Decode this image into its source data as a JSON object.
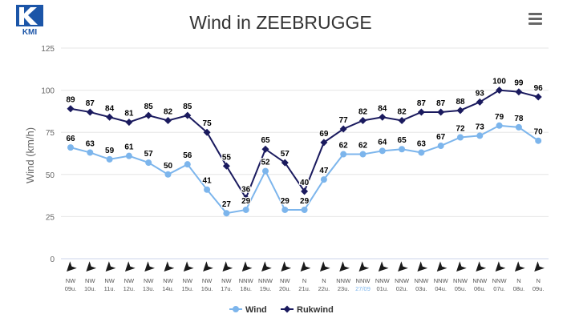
{
  "brand": {
    "logo_text": "KMI"
  },
  "toolbar": {
    "menu_icon": "hamburger-menu-icon"
  },
  "chart_data": {
    "type": "line",
    "title": "Wind in ZEEBRUGGE",
    "ylabel": "Wind (km/h)",
    "xlabel": "",
    "ylim": [
      0,
      125
    ],
    "yticks": [
      0,
      25,
      50,
      75,
      100,
      125
    ],
    "grid": true,
    "legend_position": "bottom-center",
    "categories": [
      {
        "dir": "NW",
        "time": "09u."
      },
      {
        "dir": "NW",
        "time": "10u."
      },
      {
        "dir": "NW",
        "time": "11u."
      },
      {
        "dir": "NW",
        "time": "12u."
      },
      {
        "dir": "NW",
        "time": "13u."
      },
      {
        "dir": "NW",
        "time": "14u."
      },
      {
        "dir": "NW",
        "time": "15u."
      },
      {
        "dir": "NW",
        "time": "16u."
      },
      {
        "dir": "NW",
        "time": "17u."
      },
      {
        "dir": "NNW",
        "time": "18u."
      },
      {
        "dir": "NNW",
        "time": "19u."
      },
      {
        "dir": "NW",
        "time": "20u."
      },
      {
        "dir": "N",
        "time": "21u."
      },
      {
        "dir": "N",
        "time": "22u."
      },
      {
        "dir": "NNW",
        "time": "23u."
      },
      {
        "dir": "NNW",
        "time": "27/09",
        "highlight": true
      },
      {
        "dir": "NNW",
        "time": "01u."
      },
      {
        "dir": "NNW",
        "time": "02u."
      },
      {
        "dir": "NNW",
        "time": "03u."
      },
      {
        "dir": "NNW",
        "time": "04u."
      },
      {
        "dir": "NNW",
        "time": "05u."
      },
      {
        "dir": "NNW",
        "time": "06u."
      },
      {
        "dir": "NNW",
        "time": "07u."
      },
      {
        "dir": "N",
        "time": "08u."
      },
      {
        "dir": "N",
        "time": "09u."
      }
    ],
    "series": [
      {
        "name": "Wind",
        "color": "#7cb5ec",
        "values": [
          66,
          63,
          59,
          61,
          57,
          50,
          56,
          41,
          27,
          29,
          52,
          29,
          29,
          47,
          62,
          62,
          64,
          65,
          63,
          67,
          72,
          73,
          79,
          78,
          70
        ]
      },
      {
        "name": "Rukwind",
        "color": "#1a1a5e",
        "values": [
          89,
          87,
          84,
          81,
          85,
          82,
          85,
          75,
          55,
          36,
          65,
          57,
          40,
          69,
          77,
          82,
          84,
          82,
          87,
          87,
          88,
          93,
          100,
          99,
          96
        ]
      }
    ],
    "highlight_color": "#7cb5ec"
  }
}
